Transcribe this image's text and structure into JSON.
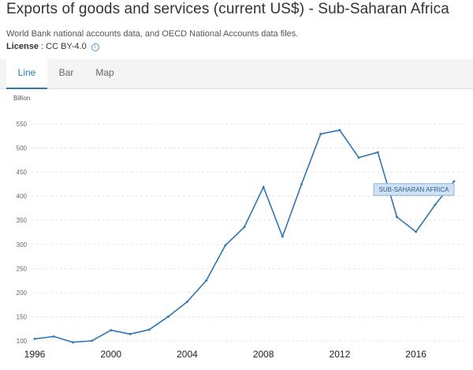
{
  "header": {
    "title": "Exports of goods and services (current US$) - Sub-Saharan Africa",
    "source": "World Bank national accounts data, and OECD National Accounts data files.",
    "license_label": "License",
    "license_value": " : CC BY-4.0"
  },
  "tabs": [
    {
      "label": "Line",
      "active": true
    },
    {
      "label": "Bar",
      "active": false
    },
    {
      "label": "Map",
      "active": false
    }
  ],
  "colors": {
    "line": "#2e75b6",
    "accent": "#2a7ab0",
    "grid": "#e5e5e5",
    "tooltip_bg": "#cfe1f3",
    "tooltip_border": "#8fb4d9"
  },
  "chart_data": {
    "type": "line",
    "title": "Exports of goods and services (current US$) - Sub-Saharan Africa",
    "ylabel": "Billion",
    "xlabel": "",
    "ylim": [
      100,
      560
    ],
    "yticks": [
      100,
      150,
      200,
      250,
      300,
      350,
      400,
      450,
      500,
      550
    ],
    "xticks": [
      1996,
      2000,
      2004,
      2008,
      2012,
      2016
    ],
    "grid": true,
    "series": [
      {
        "name": "SUB-SAHARAN AFRICA",
        "x": [
          1996,
          1997,
          1998,
          1999,
          2000,
          2001,
          2002,
          2003,
          2004,
          2005,
          2006,
          2007,
          2008,
          2009,
          2010,
          2011,
          2012,
          2013,
          2014,
          2015,
          2016,
          2017,
          2018
        ],
        "values": [
          104,
          109,
          97,
          100,
          122,
          114,
          123,
          150,
          181,
          225,
          298,
          336,
          419,
          316,
          425,
          529,
          537,
          480,
          491,
          357,
          326,
          382,
          431
        ]
      }
    ],
    "annotation": "SUB-SAHARAN AFRICA"
  }
}
